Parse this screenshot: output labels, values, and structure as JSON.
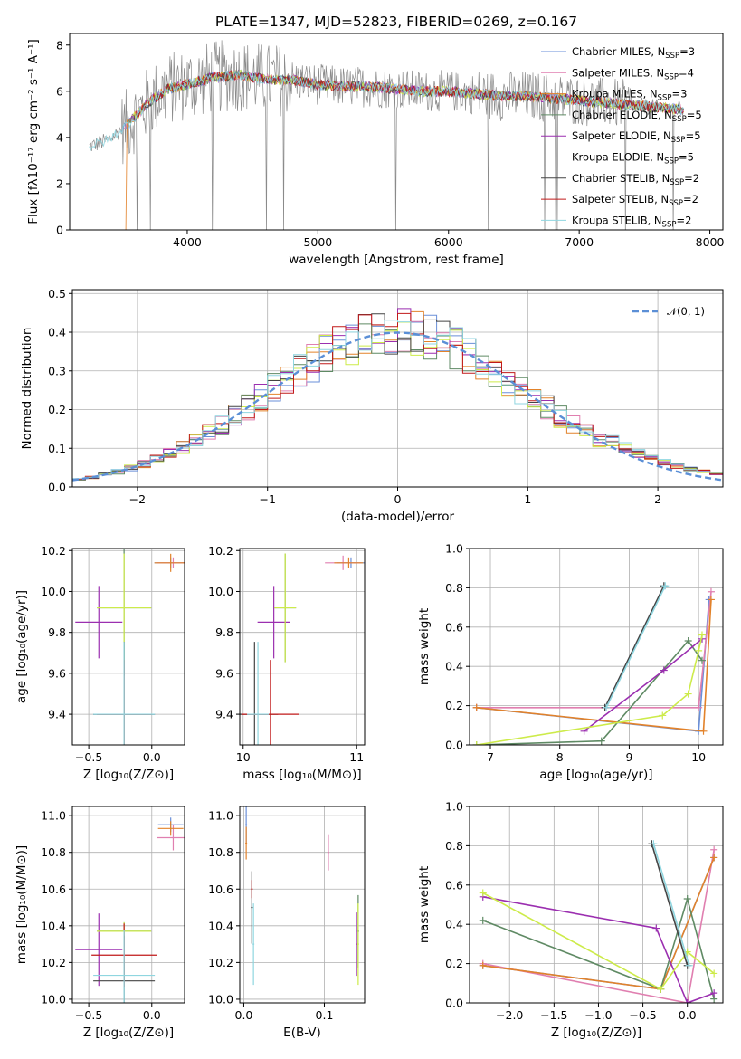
{
  "colors": {
    "chabrier_miles": "#6a8fd8",
    "salpeter_miles": "#e07fb0",
    "kroupa_miles": "#e2822a",
    "chabrier_elodie": "#5f8a64",
    "salpeter_elodie": "#9b2fb0",
    "kroupa_elodie": "#cdeb4a",
    "chabrier_stelib": "#444444",
    "salpeter_stelib": "#c11a1a",
    "kroupa_stelib": "#8fd6e0",
    "data": "#8a8a8a",
    "gauss": "#5b8fd6"
  },
  "chart_data": [
    {
      "type": "line",
      "title": "PLATE=1347, MJD=52823, FIBERID=0269, z=0.167",
      "xlabel": "wavelength [Angstrom, rest frame]",
      "ylabel": "Flux [fλ10⁻¹⁷ erg cm⁻² s⁻¹ A⁻¹]",
      "xlim": [
        3100,
        8100
      ],
      "ylim": [
        0,
        8.5
      ],
      "xticks": [
        "4000",
        "5000",
        "6000",
        "7000",
        "8000"
      ],
      "yticks": [
        "0",
        "2",
        "4",
        "6",
        "8"
      ],
      "legend_position": "right",
      "legend": [
        {
          "key": "chabrier_miles",
          "label": "Chabrier MILES, N",
          "sub": "SSP",
          "eq": "=3"
        },
        {
          "key": "salpeter_miles",
          "label": "Salpeter MILES, N",
          "sub": "SSP",
          "eq": "=4"
        },
        {
          "key": "kroupa_miles",
          "label": "Kroupa MILES, N",
          "sub": "SSP",
          "eq": "=3"
        },
        {
          "key": "chabrier_elodie",
          "label": "Chabrier ELODIE, N",
          "sub": "SSP",
          "eq": "=5"
        },
        {
          "key": "salpeter_elodie",
          "label": "Salpeter ELODIE, N",
          "sub": "SSP",
          "eq": "=5"
        },
        {
          "key": "kroupa_elodie",
          "label": "Kroupa ELODIE, N",
          "sub": "SSP",
          "eq": "=5"
        },
        {
          "key": "chabrier_stelib",
          "label": "Chabrier STELIB, N",
          "sub": "SSP",
          "eq": "=2"
        },
        {
          "key": "salpeter_stelib",
          "label": "Salpeter STELIB, N",
          "sub": "SSP",
          "eq": "=2"
        },
        {
          "key": "kroupa_stelib",
          "label": "Kroupa STELIB, N",
          "sub": "SSP",
          "eq": "=2"
        }
      ],
      "continuum": [
        [
          3250,
          3.6
        ],
        [
          3400,
          3.9
        ],
        [
          3550,
          4.6
        ],
        [
          3700,
          5.5
        ],
        [
          3850,
          6.1
        ],
        [
          4000,
          6.3
        ],
        [
          4200,
          6.6
        ],
        [
          4400,
          6.7
        ],
        [
          4600,
          6.5
        ],
        [
          4800,
          6.5
        ],
        [
          5000,
          6.3
        ],
        [
          5200,
          6.2
        ],
        [
          5400,
          6.2
        ],
        [
          5600,
          6.1
        ],
        [
          5800,
          6.0
        ],
        [
          6000,
          6.0
        ],
        [
          6200,
          5.9
        ],
        [
          6400,
          5.8
        ],
        [
          6600,
          5.8
        ],
        [
          6800,
          5.7
        ],
        [
          7000,
          5.6
        ],
        [
          7200,
          5.5
        ],
        [
          7400,
          5.4
        ],
        [
          7600,
          5.3
        ],
        [
          7800,
          5.2
        ]
      ]
    },
    {
      "type": "line",
      "xlabel": "(data-model)/error",
      "ylabel": "Normed distribution",
      "xlim": [
        -2.5,
        2.5
      ],
      "ylim": [
        0,
        0.51
      ],
      "xticks": [
        "−2",
        "−1",
        "0",
        "1",
        "2"
      ],
      "yticks": [
        "0.0",
        "0.1",
        "0.2",
        "0.3",
        "0.4",
        "0.5"
      ],
      "legend_label": "𝒩(0, 1)",
      "legend_position": "top-right"
    },
    {
      "type": "scatter",
      "xlabel": "Z [log₁₀(Z/Z⊙)]",
      "ylabel": "age  [log₁₀(age/yr)]",
      "xlim": [
        -0.63,
        0.26
      ],
      "ylim": [
        9.25,
        10.21
      ],
      "xticks": [
        "−0.5",
        "0.0"
      ],
      "yticks": [
        "9.4",
        "9.6",
        "9.8",
        "10.0",
        "10.2"
      ],
      "points": [
        {
          "key": "chabrier_miles",
          "x": 0.15,
          "y": 10.14
        },
        {
          "key": "salpeter_miles",
          "x": 0.17,
          "y": 10.14
        },
        {
          "key": "kroupa_miles",
          "x": 0.15,
          "y": 10.14
        },
        {
          "key": "chabrier_elodie",
          "x": -0.22,
          "y": 9.92
        },
        {
          "key": "salpeter_elodie",
          "x": -0.42,
          "y": 9.85
        },
        {
          "key": "kroupa_elodie",
          "x": -0.22,
          "y": 9.92
        },
        {
          "key": "chabrier_stelib",
          "x": -0.22,
          "y": 9.4
        },
        {
          "key": "salpeter_stelib",
          "x": -0.22,
          "y": 9.4
        },
        {
          "key": "kroupa_stelib",
          "x": -0.22,
          "y": 9.4
        }
      ]
    },
    {
      "type": "scatter",
      "xlabel": "mass [log₁₀(M/M⊙)]",
      "ylabel": "",
      "xlim": [
        9.97,
        11.07
      ],
      "ylim": [
        9.25,
        10.21
      ],
      "xticks": [
        "10",
        "11"
      ],
      "yticks": [
        "9.4",
        "9.6",
        "9.8",
        "10.0",
        "10.2"
      ],
      "points": [
        {
          "key": "chabrier_miles",
          "x": 10.95,
          "y": 10.14
        },
        {
          "key": "salpeter_miles",
          "x": 10.88,
          "y": 10.14
        },
        {
          "key": "kroupa_miles",
          "x": 10.93,
          "y": 10.14
        },
        {
          "key": "chabrier_elodie",
          "x": 10.37,
          "y": 9.92
        },
        {
          "key": "salpeter_elodie",
          "x": 10.27,
          "y": 9.85
        },
        {
          "key": "kroupa_elodie",
          "x": 10.37,
          "y": 9.92
        },
        {
          "key": "chabrier_stelib",
          "x": 10.1,
          "y": 9.4
        },
        {
          "key": "salpeter_stelib",
          "x": 10.24,
          "y": 9.4
        },
        {
          "key": "kroupa_stelib",
          "x": 10.13,
          "y": 9.4
        }
      ]
    },
    {
      "type": "line",
      "xlabel": "age  [log₁₀(age/yr)]",
      "ylabel": "mass weight",
      "xlim": [
        6.7,
        10.35
      ],
      "ylim": [
        0,
        1.0
      ],
      "xticks": [
        "7",
        "8",
        "9",
        "10"
      ],
      "yticks": [
        "0.0",
        "0.2",
        "0.4",
        "0.6",
        "0.8",
        "1.0"
      ],
      "series": [
        {
          "key": "chabrier_miles",
          "x": [
            6.8,
            10.0,
            10.15
          ],
          "y": [
            0.19,
            0.07,
            0.74
          ]
        },
        {
          "key": "salpeter_miles",
          "x": [
            6.8,
            10.0,
            10.18
          ],
          "y": [
            0.19,
            0.19,
            0.78
          ]
        },
        {
          "key": "kroupa_miles",
          "x": [
            6.8,
            10.07,
            10.18
          ],
          "y": [
            0.19,
            0.07,
            0.74
          ]
        },
        {
          "key": "chabrier_elodie",
          "x": [
            6.8,
            8.6,
            9.85,
            10.05
          ],
          "y": [
            0.0,
            0.02,
            0.53,
            0.43
          ]
        },
        {
          "key": "salpeter_elodie",
          "x": [
            8.35,
            9.5,
            10.05
          ],
          "y": [
            0.07,
            0.38,
            0.54
          ]
        },
        {
          "key": "kroupa_elodie",
          "x": [
            6.8,
            9.48,
            9.85,
            10.0,
            10.05
          ],
          "y": [
            0.0,
            0.15,
            0.26,
            0.48,
            0.56
          ]
        },
        {
          "key": "chabrier_stelib",
          "x": [
            8.65,
            9.5
          ],
          "y": [
            0.19,
            0.81
          ]
        },
        {
          "key": "kroupa_stelib",
          "x": [
            8.67,
            9.52
          ],
          "y": [
            0.19,
            0.81
          ]
        }
      ]
    },
    {
      "type": "scatter",
      "xlabel": "Z [log₁₀(Z/Z⊙)]",
      "ylabel": "mass [log₁₀(M/M⊙)]",
      "xlim": [
        -0.63,
        0.26
      ],
      "ylim": [
        9.98,
        11.05
      ],
      "xticks": [
        "−0.5",
        "0.0"
      ],
      "yticks": [
        "10.0",
        "10.2",
        "10.4",
        "10.6",
        "10.8",
        "11.0"
      ],
      "points": [
        {
          "key": "chabrier_miles",
          "x": 0.15,
          "y": 10.95
        },
        {
          "key": "salpeter_miles",
          "x": 0.17,
          "y": 10.88
        },
        {
          "key": "kroupa_miles",
          "x": 0.15,
          "y": 10.93
        },
        {
          "key": "chabrier_elodie",
          "x": -0.22,
          "y": 10.37
        },
        {
          "key": "salpeter_elodie",
          "x": -0.42,
          "y": 10.27
        },
        {
          "key": "kroupa_elodie",
          "x": -0.22,
          "y": 10.37
        },
        {
          "key": "chabrier_stelib",
          "x": -0.22,
          "y": 10.1
        },
        {
          "key": "salpeter_stelib",
          "x": -0.22,
          "y": 10.24
        },
        {
          "key": "kroupa_stelib",
          "x": -0.22,
          "y": 10.13
        }
      ]
    },
    {
      "type": "scatter",
      "xlabel": "E(B-V)",
      "ylabel": "",
      "xlim": [
        -0.005,
        0.15
      ],
      "ylim": [
        9.98,
        11.05
      ],
      "xticks": [
        "0.0",
        "0.1"
      ],
      "yticks": [
        "10.0",
        "10.2",
        "10.4",
        "10.6",
        "10.8",
        "11.0"
      ],
      "points": [
        {
          "key": "chabrier_miles",
          "x": 0.003,
          "y": 10.95
        },
        {
          "key": "salpeter_miles",
          "x": 0.105,
          "y": 10.8
        },
        {
          "key": "kroupa_miles",
          "x": 0.003,
          "y": 10.85
        },
        {
          "key": "chabrier_elodie",
          "x": 0.142,
          "y": 10.37
        },
        {
          "key": "salpeter_elodie",
          "x": 0.14,
          "y": 10.3
        },
        {
          "key": "kroupa_elodie",
          "x": 0.142,
          "y": 10.3
        },
        {
          "key": "chabrier_stelib",
          "x": 0.01,
          "y": 10.5
        },
        {
          "key": "salpeter_stelib",
          "x": 0.01,
          "y": 10.6
        },
        {
          "key": "kroupa_stelib",
          "x": 0.012,
          "y": 10.3
        }
      ]
    },
    {
      "type": "line",
      "xlabel": "Z [log₁₀(Z/Z⊙)]",
      "ylabel": "mass weight",
      "xlim": [
        -2.45,
        0.4
      ],
      "ylim": [
        0,
        1.0
      ],
      "xticks": [
        "−2.0",
        "−1.5",
        "−1.0",
        "−0.5",
        "0.0"
      ],
      "yticks": [
        "0.0",
        "0.2",
        "0.4",
        "0.6",
        "0.8",
        "1.0"
      ],
      "series": [
        {
          "key": "chabrier_miles",
          "x": [
            -2.3,
            -0.3,
            0.3
          ],
          "y": [
            0.19,
            0.07,
            0.74
          ]
        },
        {
          "key": "salpeter_miles",
          "x": [
            -2.3,
            0.0,
            0.3
          ],
          "y": [
            0.2,
            0.0,
            0.78
          ]
        },
        {
          "key": "kroupa_miles",
          "x": [
            -2.3,
            -0.3,
            0.3
          ],
          "y": [
            0.19,
            0.07,
            0.74
          ]
        },
        {
          "key": "chabrier_elodie",
          "x": [
            -2.3,
            -0.3,
            0.0,
            0.3
          ],
          "y": [
            0.42,
            0.07,
            0.53,
            0.02
          ]
        },
        {
          "key": "salpeter_elodie",
          "x": [
            -2.3,
            -0.35,
            0.0,
            0.3
          ],
          "y": [
            0.54,
            0.38,
            0.0,
            0.05
          ]
        },
        {
          "key": "kroupa_elodie",
          "x": [
            -2.3,
            -0.3,
            0.0,
            0.3
          ],
          "y": [
            0.56,
            0.07,
            0.26,
            0.15
          ]
        },
        {
          "key": "chabrier_stelib",
          "x": [
            -0.4,
            0.0
          ],
          "y": [
            0.81,
            0.19
          ]
        },
        {
          "key": "kroupa_stelib",
          "x": [
            -0.38,
            0.02
          ],
          "y": [
            0.81,
            0.19
          ]
        }
      ]
    }
  ]
}
